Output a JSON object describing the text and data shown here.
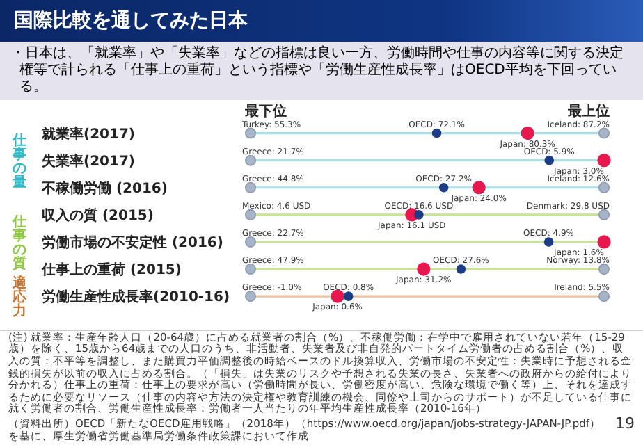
{
  "chart_data": {
    "type": "other",
    "title": "国際比較を通してみた日本",
    "subtitle": "・日本は、「就業率」や「失業率」などの指標は良い一方、労働時間や仕事の内容等に関する決定権等で計られる「仕事上の重荷」という指標や「労働生産性成長率」はOECD平均を下回っている。",
    "categories": [
      "就業率(2017)",
      "失業率(2017)",
      "不稼働労働 (2016)",
      "収入の質 (2015)",
      "労働市場の不安定性 (2016)",
      "仕事上の重荷 (2015)",
      "労働生産性成長率(2010-16)"
    ],
    "series": [
      {
        "color": "#a7b3c6",
        "values": [
          55.3,
          21.7,
          44.8,
          4.6,
          22.7,
          47.9,
          -1.0
        ],
        "value_labels": [
          "Turkey: 55.3%",
          "Greece: 21.7%",
          "Greece: 44.8%",
          "Mexico: 4.6 USD",
          "Greece: 22.7%",
          "Greece: 47.9%",
          "Greece: -1.0%"
        ]
      },
      {
        "color": "#1c3d86",
        "values": [
          72.1,
          5.9,
          27.2,
          16.6,
          4.9,
          27.6,
          0.8
        ],
        "value_labels": [
          "OECD: 72.1%",
          "OECD: 5.9%",
          "OECD: 27.2%",
          "OECD: 16.6 USD",
          "OECD: 4.9%",
          "OECD: 27.6%",
          "OECD: 0.8%"
        ]
      },
      {
        "color": "#e8174e",
        "values": [
          80.3,
          3.0,
          24.0,
          16.1,
          1.6,
          31.2,
          0.6
        ],
        "value_labels": [
          "Japan: 80.3%",
          "Japan: 3.0%",
          "Japan: 24.0%",
          "Japan: 16.1 USD",
          "Japan: 1.6%",
          "Japan: 31.2%",
          "Japan: 0.6%"
        ]
      },
      {
        "color": "#a7b3c6",
        "values": [
          87.2,
          null,
          12.6,
          29.8,
          null,
          13.8,
          5.5
        ],
        "value_labels": [
          "Iceland: 87.2%",
          null,
          "Iceland: 12.6%",
          "Denmark: 29.8 USD",
          null,
          "Norway: 13.8%",
          "Ireland: 5.5%"
        ]
      }
    ],
    "annotations": [
      "最下位",
      "最上位",
      "仕事の量",
      "仕事の質",
      "適応力",
      "(注) 就業率：生産年齢人口（20-64歳）に占める就業者の割合（%）、不稼働労働：在学中で雇用されていない若年（15-29歳）を除く、15歳から64歳までの人口のうち、非活動者、失業者及び非自発的パートタイム労働者の占める割合（%）、収入の質：不平等を調整し、また購買力平価調整後の時給ベースのドル換算収入、労働市場の不安定性：失業時に予想される金銭的損失が以前の収入に占める割合。（「損失」は失業のリスクや予想される失業の長さ、失業者への政府からの給付により分かれる）仕事上の重荷：仕事上の要求が高い（労働時間が長い、労働密度が高い、危険な環境で働く等）上、それを達成するために必要なリソース（仕事の内容や方法の決定権や教育訓練の機会、同僚や上司からのサポート）が不足している仕事に就く労働者の割合、労働生産性成長率：労働者一人当たりの年平均生産性成長率（2010-16年）",
      "（資料出所）OECD「新たなOECD雇用戦略」（2018年）（https://www.oecd.org/japan/jobs-strategy-JAPAN-JP.pdf）を基に、厚生労働省労働基準局労働条件政策課において作成",
      "19"
    ]
  }
}
